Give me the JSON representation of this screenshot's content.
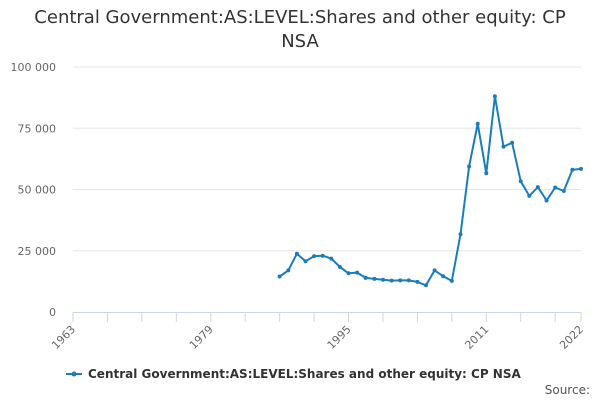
{
  "chart_data": {
    "type": "line",
    "title": "Central Government:AS:LEVEL:Shares and other equity: CP NSA",
    "xlabel": "",
    "ylabel": "",
    "xlim": [
      1963,
      2022
    ],
    "ylim": [
      0,
      100000
    ],
    "x_ticks": [
      1963,
      1979,
      1995,
      2011,
      2022
    ],
    "x_tick_labels": [
      "1963",
      "1979",
      "1995",
      "2011",
      "2022"
    ],
    "y_ticks": [
      0,
      25000,
      50000,
      75000,
      100000
    ],
    "y_tick_labels": [
      "0",
      "25 000",
      "50 000",
      "75 000",
      "100 000"
    ],
    "grid": "horizontal",
    "legend_position": "bottom",
    "series": [
      {
        "name": "Central Government:AS:LEVEL:Shares and other equity: CP NSA",
        "color": "#1a7dbd",
        "x": [
          1987,
          1988,
          1989,
          1990,
          1991,
          1992,
          1993,
          1994,
          1995,
          1996,
          1997,
          1998,
          1999,
          2000,
          2001,
          2002,
          2003,
          2004,
          2005,
          2006,
          2007,
          2008,
          2009,
          2010,
          2011,
          2012,
          2013,
          2014,
          2015,
          2016,
          2017,
          2018,
          2019,
          2020,
          2021,
          2022
        ],
        "values": [
          14500,
          17000,
          23800,
          20700,
          22800,
          23000,
          21800,
          18400,
          15800,
          16100,
          13900,
          13500,
          13200,
          12800,
          12900,
          12900,
          12300,
          10900,
          17000,
          14600,
          12700,
          31700,
          59400,
          76800,
          56600,
          88100,
          67500,
          69100,
          53400,
          47400,
          51000,
          45500,
          50800,
          49400,
          58100,
          58400
        ]
      }
    ]
  },
  "legend": {
    "label": "Central Government:AS:LEVEL:Shares and other equity: CP NSA"
  },
  "source": {
    "label": "Source:"
  }
}
